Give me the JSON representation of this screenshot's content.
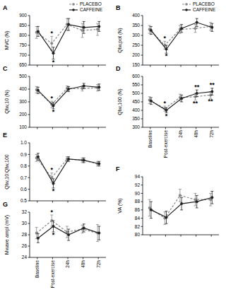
{
  "chart_data": [
    {
      "type": "line",
      "title": "A",
      "y_label": "MVC (N)",
      "categories": [
        "Baseline",
        "Post-exercise",
        "24h",
        "48h",
        "72h"
      ],
      "ylim": [
        650,
        900
      ],
      "yticks": [
        650,
        700,
        750,
        800,
        850,
        900
      ],
      "tick_labels": "y",
      "legend": "top right",
      "series": [
        {
          "name": "PLACEBO",
          "color": "#888888",
          "line_style": "dashed",
          "marker": "circle",
          "values": [
            815,
            760,
            855,
            825,
            830
          ],
          "errors": [
            30,
            35,
            30,
            35,
            30
          ]
        },
        {
          "name": "CAFFEINE",
          "color": "#222222",
          "line_style": "solid",
          "marker": "circle",
          "values": [
            820,
            710,
            855,
            840,
            845
          ],
          "errors": [
            25,
            30,
            30,
            30,
            25
          ]
        }
      ],
      "annotations": [
        {
          "text": "*",
          "series": 0,
          "index": 1
        },
        {
          "text": "*",
          "series": 1,
          "index": 1
        }
      ]
    },
    {
      "type": "line",
      "title": "B",
      "y_label": "Qtw,pot (N)",
      "categories": [
        "Baseline",
        "Post-exercise",
        "24h",
        "48h",
        "72h"
      ],
      "ylim": [
        150,
        400
      ],
      "yticks": [
        150,
        200,
        250,
        300,
        350,
        400
      ],
      "tick_labels": "y",
      "legend": "top right",
      "series": [
        {
          "name": "PLACEBO",
          "color": "#888888",
          "line_style": "dashed",
          "marker": "circle",
          "values": [
            330,
            250,
            330,
            335,
            345
          ],
          "errors": [
            20,
            20,
            20,
            20,
            20
          ]
        },
        {
          "name": "CAFFEINE",
          "color": "#222222",
          "line_style": "solid",
          "marker": "circle",
          "values": [
            325,
            230,
            335,
            365,
            340
          ],
          "errors": [
            20,
            20,
            20,
            20,
            20
          ]
        }
      ],
      "annotations": [
        {
          "text": "*",
          "series": 0,
          "index": 1
        },
        {
          "text": "*",
          "series": 1,
          "index": 1
        }
      ]
    },
    {
      "type": "line",
      "title": "C",
      "y_label": "Qtw,10 (N)",
      "categories": [
        "Baseline",
        "Post-exercise",
        "24h",
        "48h",
        "72h"
      ],
      "ylim": [
        100,
        500
      ],
      "yticks": [
        100,
        200,
        300,
        400,
        500
      ],
      "tick_labels": "y",
      "series": [
        {
          "name": "PLACEBO",
          "color": "#888888",
          "line_style": "dashed",
          "marker": "circle",
          "values": [
            395,
            280,
            405,
            405,
            410
          ],
          "errors": [
            25,
            25,
            20,
            20,
            25
          ]
        },
        {
          "name": "CAFFEINE",
          "color": "#222222",
          "line_style": "solid",
          "marker": "circle",
          "values": [
            390,
            270,
            400,
            425,
            415
          ],
          "errors": [
            25,
            25,
            20,
            20,
            25
          ]
        }
      ],
      "annotations": [
        {
          "text": "*",
          "series": 0,
          "index": 1
        },
        {
          "text": "*",
          "series": 1,
          "index": 1
        }
      ]
    },
    {
      "type": "line",
      "title": "D",
      "y_label": "Qtw,100 (N)",
      "categories": [
        "Baseline",
        "Post-exercise",
        "24h",
        "48h",
        "72h"
      ],
      "ylim": [
        300,
        600
      ],
      "yticks": [
        300,
        350,
        400,
        450,
        500,
        550,
        600
      ],
      "series": [
        {
          "name": "PLACEBO",
          "color": "#888888",
          "line_style": "dashed",
          "marker": "circle",
          "values": [
            460,
            410,
            475,
            480,
            490
          ],
          "errors": [
            20,
            15,
            20,
            20,
            20
          ]
        },
        {
          "name": "CAFFEINE",
          "color": "#222222",
          "line_style": "solid",
          "marker": "circle",
          "values": [
            455,
            400,
            470,
            500,
            510
          ],
          "errors": [
            20,
            15,
            20,
            20,
            20
          ]
        }
      ],
      "annotations": [
        {
          "text": "*",
          "series": 0,
          "index": 1
        },
        {
          "text": "*",
          "series": 1,
          "index": 1
        },
        {
          "text": "**",
          "series": 0,
          "index": 3
        },
        {
          "text": "**",
          "series": 1,
          "index": 3
        },
        {
          "text": "**",
          "series": 0,
          "index": 4
        },
        {
          "text": "**",
          "series": 1,
          "index": 4
        }
      ]
    },
    {
      "type": "line",
      "title": "E",
      "y_label": "Qtw,10:Qtw,100",
      "categories": [
        "Baseline",
        "Post-exercise",
        "24h",
        "48h",
        "72h"
      ],
      "ylim": [
        0.5,
        1
      ],
      "yticks": [
        0.5,
        0.6,
        0.7,
        0.8,
        0.9,
        {
          "value": 1,
          "label": "1.0"
        }
      ],
      "tick_labels": "y",
      "series": [
        {
          "name": "PLACEBO",
          "color": "#888888",
          "line_style": "dashed",
          "marker": "circle",
          "values": [
            0.87,
            0.7,
            0.86,
            0.85,
            0.82
          ],
          "errors": [
            0.03,
            0.04,
            0.02,
            0.02,
            0.02
          ]
        },
        {
          "name": "CAFFEINE",
          "color": "#222222",
          "line_style": "solid",
          "marker": "circle",
          "values": [
            0.88,
            0.65,
            0.86,
            0.85,
            0.82
          ],
          "errors": [
            0.03,
            0.04,
            0.02,
            0.02,
            0.02
          ]
        }
      ],
      "annotations": [
        {
          "text": "*",
          "series": 0,
          "index": 1
        },
        {
          "text": "*",
          "series": 1,
          "index": 1
        }
      ]
    },
    {
      "type": "line",
      "title": "F",
      "y_label": "VA (%)",
      "categories": [
        "Baseline",
        "Post-exercise",
        "24h",
        "48h",
        "72h"
      ],
      "ylim": [
        80,
        94
      ],
      "yticks": [
        80,
        82,
        84,
        86,
        88,
        90,
        92,
        94
      ],
      "tick_labels": "y",
      "series": [
        {
          "name": "PLACEBO",
          "color": "#888888",
          "line_style": "dashed",
          "marker": "circle",
          "values": [
            86.5,
            84,
            89.5,
            88.5,
            88.5
          ],
          "errors": [
            2,
            1.5,
            1.5,
            1.5,
            1.5
          ]
        },
        {
          "name": "CAFFEINE",
          "color": "#222222",
          "line_style": "solid",
          "marker": "circle",
          "values": [
            86,
            84.2,
            87.5,
            88,
            89
          ],
          "errors": [
            2,
            1.5,
            1.5,
            1.5,
            1.5
          ]
        }
      ]
    },
    {
      "type": "line",
      "title": "G",
      "y_label": "Mwave ampl (mV)",
      "categories": [
        "Baseline",
        "Post-exercise",
        "24h",
        "48h",
        "72h"
      ],
      "ylim": [
        24,
        32
      ],
      "yticks": [
        24,
        26,
        28,
        30,
        32
      ],
      "series": [
        {
          "name": "PLACEBO",
          "color": "#888888",
          "line_style": "dashed",
          "marker": "circle",
          "values": [
            28.3,
            30.5,
            28.5,
            29,
            28.3
          ],
          "errors": [
            1,
            1,
            1,
            0.7,
            1.5
          ]
        },
        {
          "name": "CAFFEINE",
          "color": "#222222",
          "line_style": "solid",
          "marker": "circle",
          "values": [
            27.4,
            29.5,
            28,
            29.2,
            28.3
          ],
          "errors": [
            0.8,
            1,
            1,
            0.7,
            1.2
          ]
        }
      ],
      "annotations": [
        {
          "text": "*",
          "series": 0,
          "index": 1
        },
        {
          "text": "*",
          "series": 1,
          "index": 1
        }
      ]
    }
  ]
}
